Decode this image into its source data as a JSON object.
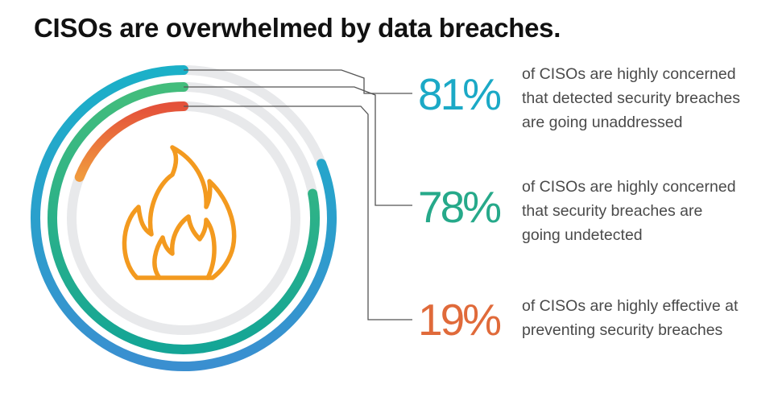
{
  "title": "CISOs are overwhelmed by data breaches.",
  "colors": {
    "track": "#e8e9eb",
    "leader": "#555555",
    "flame": "#f39a1f"
  },
  "icons": {
    "center": "flame-icon"
  },
  "chart_data": {
    "type": "radial-bar",
    "unit": "%",
    "max": 100,
    "series": [
      {
        "value": 81,
        "label": "81%",
        "description": [
          "of CISOs are highly concerned",
          "that detected security breaches",
          "are going unaddressed"
        ],
        "colors": [
          "#1bb0c8",
          "#3a8fd0"
        ],
        "text_color": "#1ba9c6"
      },
      {
        "value": 78,
        "label": "78%",
        "description": [
          "of CISOs are highly concerned",
          "that security breaches are",
          "going undetected"
        ],
        "colors": [
          "#43bd7c",
          "#14a596"
        ],
        "text_color": "#26a98a"
      },
      {
        "value": 19,
        "label": "19%",
        "description": [
          "of CISOs are highly effective at",
          "preventing security breaches"
        ],
        "colors": [
          "#e4513a",
          "#f09a3e"
        ],
        "text_color": "#e06a3a"
      }
    ]
  }
}
